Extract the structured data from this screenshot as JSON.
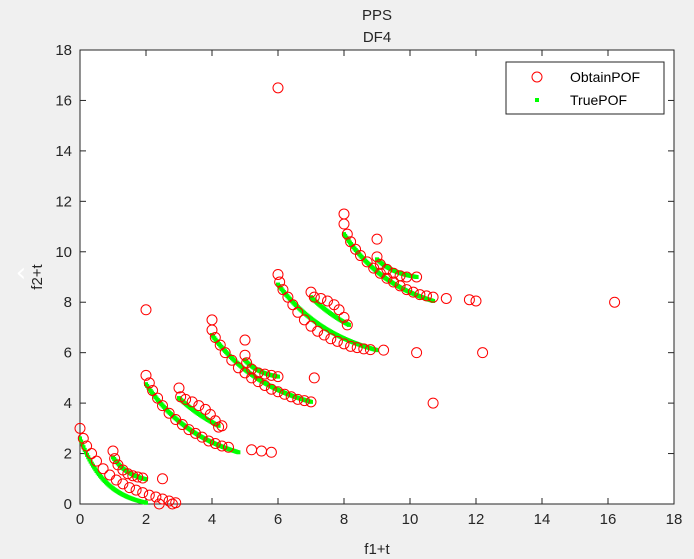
{
  "chart_data": {
    "type": "scatter",
    "title": "PPS",
    "subtitle": "DF4",
    "xlabel": "f1+t",
    "ylabel": "f2+t",
    "xlim": [
      0,
      18
    ],
    "ylim": [
      0,
      18
    ],
    "xticks": [
      0,
      2,
      4,
      6,
      8,
      10,
      12,
      14,
      16,
      18
    ],
    "yticks": [
      0,
      2,
      4,
      6,
      8,
      10,
      12,
      14,
      16,
      18
    ],
    "grid": false,
    "legend": "top-right",
    "series": [
      {
        "name": "ObtainPOF",
        "marker": "open-circle",
        "color": "#ff0000",
        "points": [
          [
            0,
            3.0
          ],
          [
            0.1,
            2.6
          ],
          [
            0.2,
            2.3
          ],
          [
            0.35,
            2.0
          ],
          [
            0.5,
            1.7
          ],
          [
            0.7,
            1.4
          ],
          [
            0.9,
            1.15
          ],
          [
            1.1,
            0.95
          ],
          [
            1.3,
            0.8
          ],
          [
            1.5,
            0.65
          ],
          [
            1.7,
            0.55
          ],
          [
            1.9,
            0.45
          ],
          [
            2.1,
            0.35
          ],
          [
            2.3,
            0.28
          ],
          [
            2.5,
            0.2
          ],
          [
            2.7,
            0.12
          ],
          [
            2.9,
            0.05
          ],
          [
            2.4,
            0.0
          ],
          [
            2.8,
            0.0
          ],
          [
            1.0,
            2.1
          ],
          [
            1.05,
            1.8
          ],
          [
            1.15,
            1.55
          ],
          [
            1.3,
            1.35
          ],
          [
            1.45,
            1.2
          ],
          [
            1.6,
            1.12
          ],
          [
            1.75,
            1.07
          ],
          [
            1.9,
            1.03
          ],
          [
            2.5,
            1.0
          ],
          [
            2.0,
            7.7
          ],
          [
            2.0,
            5.1
          ],
          [
            2.1,
            4.8
          ],
          [
            2.2,
            4.5
          ],
          [
            2.35,
            4.2
          ],
          [
            2.5,
            3.9
          ],
          [
            2.7,
            3.6
          ],
          [
            2.9,
            3.35
          ],
          [
            3.1,
            3.15
          ],
          [
            3.3,
            2.95
          ],
          [
            3.5,
            2.8
          ],
          [
            3.7,
            2.65
          ],
          [
            3.9,
            2.5
          ],
          [
            4.1,
            2.4
          ],
          [
            4.3,
            2.3
          ],
          [
            4.5,
            2.25
          ],
          [
            5.2,
            2.15
          ],
          [
            5.5,
            2.1
          ],
          [
            5.8,
            2.05
          ],
          [
            3.0,
            4.6
          ],
          [
            3.05,
            4.25
          ],
          [
            3.2,
            4.15
          ],
          [
            3.4,
            4.05
          ],
          [
            3.6,
            3.9
          ],
          [
            3.8,
            3.75
          ],
          [
            3.95,
            3.55
          ],
          [
            4.1,
            3.3
          ],
          [
            4.2,
            3.05
          ],
          [
            4.3,
            3.1
          ],
          [
            4.0,
            7.3
          ],
          [
            4.0,
            6.9
          ],
          [
            4.1,
            6.6
          ],
          [
            4.25,
            6.3
          ],
          [
            4.4,
            6.0
          ],
          [
            4.6,
            5.7
          ],
          [
            4.8,
            5.4
          ],
          [
            5.0,
            5.2
          ],
          [
            5.2,
            5.0
          ],
          [
            5.4,
            4.85
          ],
          [
            5.6,
            4.7
          ],
          [
            5.8,
            4.55
          ],
          [
            6.0,
            4.45
          ],
          [
            6.2,
            4.35
          ],
          [
            6.4,
            4.25
          ],
          [
            6.6,
            4.15
          ],
          [
            6.8,
            4.1
          ],
          [
            7.0,
            4.05
          ],
          [
            5.0,
            6.5
          ],
          [
            5.0,
            5.9
          ],
          [
            5.05,
            5.6
          ],
          [
            5.2,
            5.35
          ],
          [
            5.4,
            5.2
          ],
          [
            5.6,
            5.15
          ],
          [
            5.8,
            5.1
          ],
          [
            6.0,
            5.05
          ],
          [
            7.1,
            5.0
          ],
          [
            6.0,
            9.1
          ],
          [
            6.05,
            8.8
          ],
          [
            6.15,
            8.5
          ],
          [
            6.3,
            8.2
          ],
          [
            6.45,
            7.9
          ],
          [
            6.6,
            7.6
          ],
          [
            6.8,
            7.3
          ],
          [
            7.0,
            7.05
          ],
          [
            7.2,
            6.85
          ],
          [
            7.4,
            6.7
          ],
          [
            7.6,
            6.55
          ],
          [
            7.8,
            6.45
          ],
          [
            8.0,
            6.35
          ],
          [
            8.2,
            6.25
          ],
          [
            8.4,
            6.2
          ],
          [
            8.6,
            6.15
          ],
          [
            8.8,
            6.12
          ],
          [
            9.2,
            6.1
          ],
          [
            6.0,
            16.5
          ],
          [
            7.0,
            8.4
          ],
          [
            7.1,
            8.2
          ],
          [
            7.3,
            8.15
          ],
          [
            7.5,
            8.05
          ],
          [
            7.7,
            7.9
          ],
          [
            7.85,
            7.7
          ],
          [
            8.0,
            7.4
          ],
          [
            8.1,
            7.1
          ],
          [
            8.0,
            11.5
          ],
          [
            8.0,
            11.1
          ],
          [
            8.1,
            10.7
          ],
          [
            8.2,
            10.4
          ],
          [
            8.35,
            10.1
          ],
          [
            8.5,
            9.85
          ],
          [
            8.7,
            9.6
          ],
          [
            8.9,
            9.35
          ],
          [
            9.1,
            9.15
          ],
          [
            9.3,
            8.95
          ],
          [
            9.5,
            8.8
          ],
          [
            9.7,
            8.65
          ],
          [
            9.9,
            8.5
          ],
          [
            10.1,
            8.4
          ],
          [
            10.3,
            8.3
          ],
          [
            10.5,
            8.25
          ],
          [
            10.7,
            8.2
          ],
          [
            11.1,
            8.15
          ],
          [
            9.0,
            10.5
          ],
          [
            9.0,
            9.8
          ],
          [
            9.1,
            9.5
          ],
          [
            9.3,
            9.3
          ],
          [
            9.5,
            9.15
          ],
          [
            9.7,
            9.05
          ],
          [
            9.9,
            9.0
          ],
          [
            10.2,
            9.0
          ],
          [
            11.8,
            8.1
          ],
          [
            12.0,
            8.05
          ],
          [
            16.2,
            8.0
          ],
          [
            10.2,
            6.0
          ],
          [
            12.2,
            6.0
          ],
          [
            10.7,
            4.0
          ]
        ]
      },
      {
        "name": "TruePOF",
        "marker": "point",
        "color": "#00ff00",
        "curves": [
          {
            "x0": 0,
            "x1": 2,
            "y0": 2.6,
            "y1": 0.05,
            "k": 2.5
          },
          {
            "x0": 1,
            "x1": 2,
            "y0": 1.85,
            "y1": 0.98,
            "k": 1.8
          },
          {
            "x0": 2,
            "x1": 4.8,
            "y0": 4.75,
            "y1": 2.05,
            "k": 1.6
          },
          {
            "x0": 3,
            "x1": 4.2,
            "y0": 4.2,
            "y1": 3.1,
            "k": 0.6
          },
          {
            "x0": 4,
            "x1": 7,
            "y0": 6.7,
            "y1": 4.05,
            "k": 1.6
          },
          {
            "x0": 5,
            "x1": 6.0,
            "y0": 5.7,
            "y1": 5.05,
            "k": 1.8
          },
          {
            "x0": 6,
            "x1": 9,
            "y0": 8.7,
            "y1": 6.1,
            "k": 1.6
          },
          {
            "x0": 7,
            "x1": 8.15,
            "y0": 8.2,
            "y1": 7.1,
            "k": 0.6
          },
          {
            "x0": 8,
            "x1": 10.7,
            "y0": 10.7,
            "y1": 8.05,
            "k": 1.6
          },
          {
            "x0": 9,
            "x1": 10.2,
            "y0": 9.7,
            "y1": 9.0,
            "k": 1.8
          }
        ]
      }
    ]
  }
}
